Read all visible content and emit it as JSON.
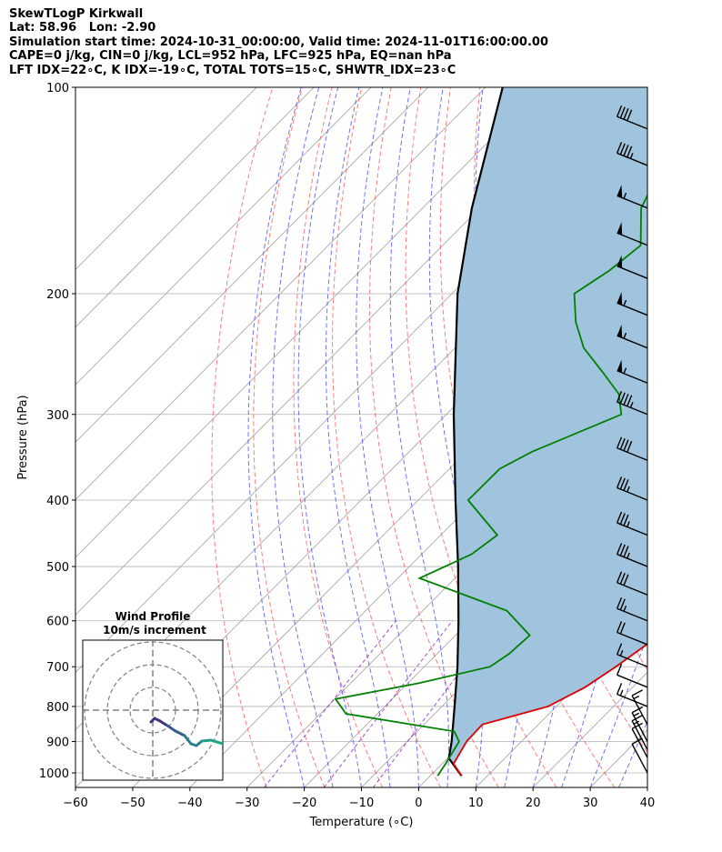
{
  "header": {
    "line1": "SkewTLogP Kirkwall",
    "line2": "Lat: 58.96   Lon: -2.90",
    "line3": "Simulation start time: 2024-10-31_00:00:00, Valid time: 2024-11-01T16:00:00.00",
    "line4": "CAPE=0 j/kg, CIN=0 j/kg, LCL=952 hPa, LFC=925 hPa, EQ=nan hPa",
    "line5": "LFT IDX=22∘C, K IDX=-19∘C, TOTAL TOTS=15∘C, SHWTR_IDX=23∘C"
  },
  "colors": {
    "temperature": "#e00000",
    "dewpoint": "#008000",
    "parcel": "#000000",
    "fill": "#a0c4de",
    "dry_adiabat": "#ff5050",
    "moist_adiabat": "#4040ff",
    "mixing_ratio": "#8000c0",
    "isotherm": "#a0a0a0",
    "wind_barb": "#000000"
  },
  "chart_data": {
    "type": "skewt",
    "xlabel": "Temperature (∘C)",
    "ylabel": "Pressure (hPa)",
    "xlim": [
      -60,
      40
    ],
    "ylim": [
      1050,
      100
    ],
    "y_scale": "log",
    "grid": true,
    "x_ticks": [
      -60,
      -50,
      -40,
      -30,
      -20,
      -10,
      0,
      10,
      20,
      30,
      40
    ],
    "x_tick_labels": [
      "−60",
      "−50",
      "−40",
      "−30",
      "−20",
      "−10",
      "0",
      "10",
      "20",
      "30",
      "40"
    ],
    "y_ticks": [
      1000,
      900,
      800,
      700,
      600,
      500,
      400,
      300,
      200,
      100
    ],
    "y_tick_labels": [
      "1000",
      "900",
      "800",
      "700",
      "600",
      "500",
      "400",
      "300",
      "200",
      "100"
    ],
    "series": [
      {
        "key": "temperature",
        "pressure": [
          1010,
          970,
          900,
          850,
          800,
          750,
          700,
          650,
          600,
          550,
          500,
          450,
          400,
          360,
          330,
          300,
          280,
          260,
          240,
          220,
          200,
          190,
          170,
          150,
          130,
          115,
          107,
          100
        ],
        "temp": [
          5.5,
          2,
          0.4,
          0.2,
          8.5,
          11.7,
          13.5,
          15,
          16.4,
          14.8,
          11.5,
          6.3,
          -0.5,
          -5.6,
          -8.4,
          -12.2,
          -14.9,
          -18,
          -21.4,
          -24.7,
          -28.3,
          -31.6,
          -36.9,
          -42.6,
          -48.6,
          -56.5,
          -59.6,
          -62.5
        ]
      },
      {
        "key": "dewpoint",
        "pressure": [
          1010,
          970,
          900,
          870,
          820,
          780,
          740,
          700,
          670,
          630,
          580,
          520,
          480,
          450,
          400,
          360,
          340,
          300,
          280,
          260,
          240,
          220,
          200,
          185,
          170,
          150,
          135,
          122,
          100
        ],
        "dewp": [
          1.3,
          0.6,
          -0.9,
          -3.5,
          -25.5,
          -29.9,
          -18.1,
          -8.5,
          -7.4,
          -7,
          -15.3,
          -36.2,
          -31.3,
          -30.1,
          -41.3,
          -41.2,
          -38.5,
          -29.4,
          -33.4,
          -40.1,
          -47.5,
          -53.4,
          -58.6,
          -56.5,
          -55.4,
          -61.8,
          -64.5,
          -62.8,
          -58.3
        ]
      },
      {
        "key": "parcel",
        "pressure": [
          1010,
          952,
          900,
          800,
          700,
          600,
          500,
          400,
          300,
          200,
          150,
          100
        ],
        "temp": [
          5.5,
          0.2,
          -2.2,
          -7.8,
          -14.2,
          -22,
          -31.5,
          -43.5,
          -58.7,
          -79,
          -91.4,
          -107
        ]
      }
    ],
    "wind_barbs": {
      "pressure": [
        1000,
        950,
        925,
        900,
        850,
        800,
        750,
        700,
        650,
        600,
        550,
        500,
        450,
        400,
        350,
        300,
        270,
        240,
        215,
        190,
        170,
        150,
        130,
        115
      ],
      "speed_kt": [
        12,
        14,
        16,
        17,
        18,
        16,
        12,
        18,
        22,
        28,
        32,
        36,
        38,
        39,
        40,
        45,
        55,
        58,
        55,
        52,
        54,
        55,
        45,
        43
      ]
    },
    "inset": {
      "title": "Wind Profile",
      "subtitle": "10m/s increment",
      "colors": [
        "#46327e",
        "#365c8d",
        "#277f8e",
        "#1fa187"
      ]
    }
  }
}
